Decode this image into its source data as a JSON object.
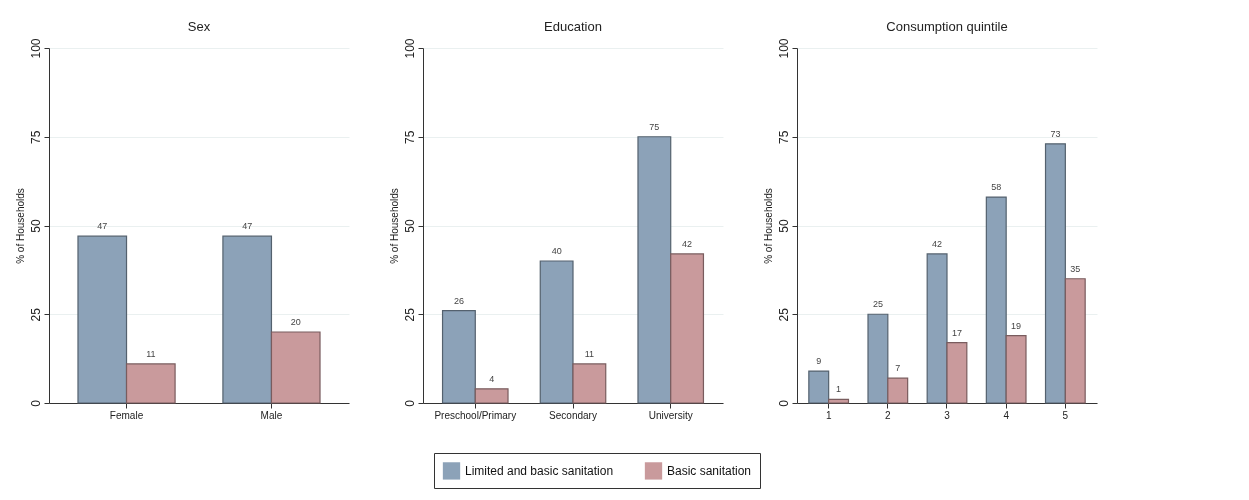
{
  "chart_data": [
    {
      "type": "bar",
      "title": "Sex",
      "ylabel": "% of Households",
      "categories": [
        "Female",
        "Male"
      ],
      "series": [
        {
          "name": "Limited and basic sanitation",
          "color": "#8ca2b8",
          "values": [
            47,
            47
          ]
        },
        {
          "name": "Basic sanitation",
          "color": "#c99a9c",
          "values": [
            11,
            20
          ]
        }
      ],
      "ylim": [
        0,
        100
      ],
      "yticks": [
        0,
        25,
        50,
        75,
        100
      ],
      "grid": "y",
      "legend": "bottom",
      "data_labels": true
    },
    {
      "type": "bar",
      "title": "Education",
      "ylabel": "% of Households",
      "categories": [
        "Preschool/Primary",
        "Secondary",
        "University"
      ],
      "series": [
        {
          "name": "Limited and basic sanitation",
          "color": "#8ca2b8",
          "values": [
            26,
            40,
            75
          ]
        },
        {
          "name": "Basic sanitation",
          "color": "#c99a9c",
          "values": [
            4,
            11,
            42
          ]
        }
      ],
      "ylim": [
        0,
        100
      ],
      "yticks": [
        0,
        25,
        50,
        75,
        100
      ],
      "grid": "y",
      "legend": "bottom",
      "data_labels": true
    },
    {
      "type": "bar",
      "title": "Consumption quintile",
      "ylabel": "% of Households",
      "categories": [
        "1",
        "2",
        "3",
        "4",
        "5"
      ],
      "series": [
        {
          "name": "Limited and basic sanitation",
          "color": "#8ca2b8",
          "values": [
            9,
            25,
            42,
            58,
            73
          ]
        },
        {
          "name": "Basic sanitation",
          "color": "#c99a9c",
          "values": [
            1,
            7,
            17,
            19,
            35
          ]
        }
      ],
      "ylim": [
        0,
        100
      ],
      "yticks": [
        0,
        25,
        50,
        75,
        100
      ],
      "grid": "y",
      "legend": "bottom",
      "data_labels": true
    }
  ]
}
